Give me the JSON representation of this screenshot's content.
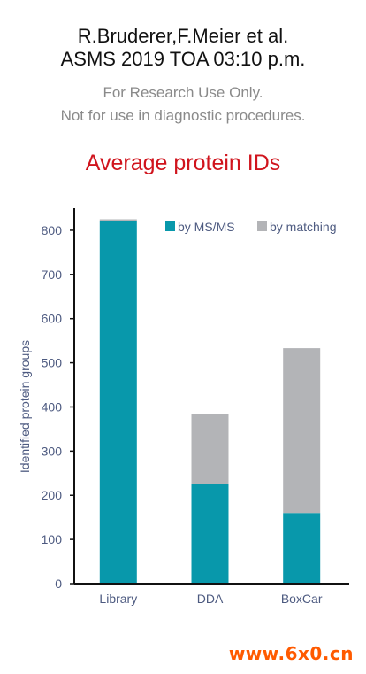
{
  "header": {
    "line1": "R.Bruderer,F.Meier et al.",
    "line2": "ASMS 2019  TOA 03:10 p.m."
  },
  "disclaimer": {
    "line1": "For Research Use Only.",
    "line2": "Not for use in diagnostic procedures."
  },
  "watermark": "www.6x0.cn",
  "chart_data": {
    "type": "bar",
    "stacked": true,
    "title": "Average protein IDs",
    "xlabel": "",
    "ylabel": "Identified protein groups",
    "categories": [
      "Library",
      "DDA",
      "BoxCar"
    ],
    "series": [
      {
        "name": "by MS/MS",
        "color": "#0898ab",
        "values": [
          822,
          225,
          160
        ]
      },
      {
        "name": "by matching",
        "color": "#b3b4b7",
        "values": [
          3,
          158,
          373
        ]
      }
    ],
    "ylim": [
      0,
      850
    ],
    "yticks": [
      0,
      100,
      200,
      300,
      400,
      500,
      600,
      700,
      800
    ],
    "grid": false,
    "legend_position": "top-right",
    "title_color": "#d0141d",
    "axis_text_color": "#4d5a80"
  }
}
